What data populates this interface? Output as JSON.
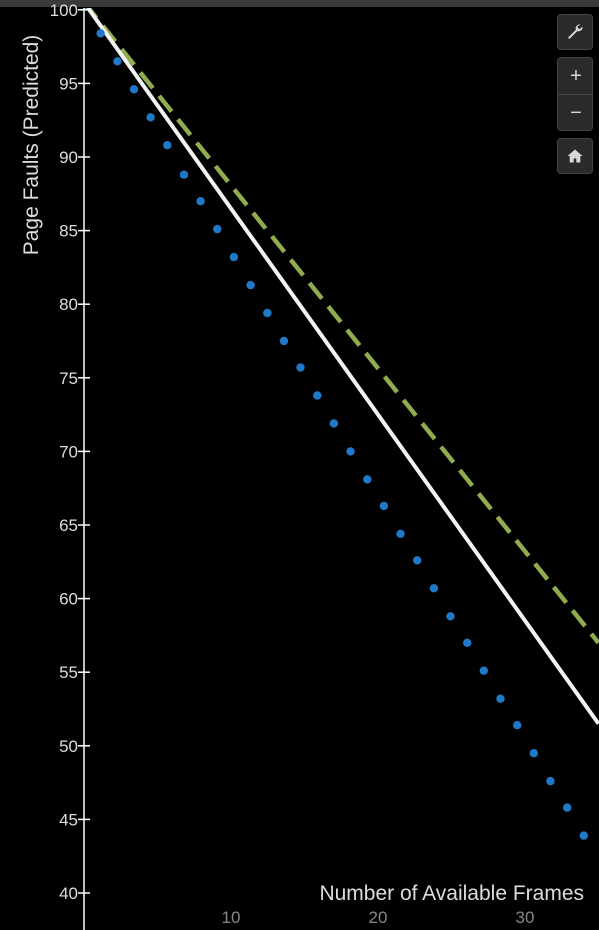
{
  "toolbar": {
    "settings_icon": "wrench-icon",
    "zoom_in_label": "+",
    "zoom_out_label": "−",
    "home_icon": "home-icon"
  },
  "chart_data": {
    "type": "line",
    "xlabel": "Number of Available Frames",
    "ylabel": "Page Faults (Predicted)",
    "xlim": [
      0,
      35
    ],
    "ylim": [
      39.5,
      100.5
    ],
    "xticks": [
      10,
      20,
      30
    ],
    "yticks": [
      40,
      45,
      50,
      55,
      60,
      65,
      70,
      75,
      80,
      85,
      90,
      95,
      100
    ],
    "grid": false,
    "colors": {
      "background": "#000000",
      "axis": "#ffffff",
      "tick_label_y": "#dddddd",
      "tick_label_x": "#888888",
      "xlabel": "#dddddd"
    },
    "series": [
      {
        "style": "dashed",
        "color": "#8fad4e",
        "x": [
          0,
          35
        ],
        "y": [
          100.5,
          57.0
        ]
      },
      {
        "style": "solid",
        "color": "#f2f2f2",
        "x": [
          0,
          35
        ],
        "y": [
          100.5,
          51.5
        ]
      },
      {
        "style": "dotted",
        "color": "#1f78c8",
        "x": [
          0,
          1.13,
          2.27,
          3.4,
          4.53,
          5.67,
          6.8,
          7.93,
          9.07,
          10.2,
          11.33,
          12.47,
          13.6,
          14.73,
          15.87,
          17.0,
          18.13,
          19.27,
          20.4,
          21.53,
          22.67,
          23.8,
          24.93,
          26.07,
          27.2,
          28.33,
          29.47,
          30.6,
          31.73,
          32.87,
          34.0
        ],
        "y": [
          100.3,
          98.4,
          96.5,
          94.6,
          92.7,
          90.8,
          88.8,
          87.0,
          85.1,
          83.2,
          81.3,
          79.4,
          77.5,
          75.7,
          73.8,
          71.9,
          70.0,
          68.1,
          66.3,
          64.4,
          62.6,
          60.7,
          58.8,
          57.0,
          55.1,
          53.2,
          51.4,
          49.5,
          47.6,
          45.8,
          43.9
        ]
      }
    ]
  }
}
